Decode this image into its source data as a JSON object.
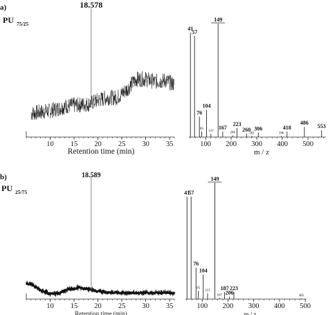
{
  "panels": [
    {
      "id": "a",
      "label": "a)",
      "sample_main": "PU",
      "sample_sub": "75/25",
      "peak_label": "18.578",
      "xlabel_chrom": "Retention time (min)",
      "xlabel_ms": "m / z"
    },
    {
      "id": "b",
      "label": "b)",
      "sample_main": "PU",
      "sample_sub": "25/75",
      "peak_label": "18.589",
      "xlabel_chrom": "Retention time (min)",
      "xlabel_ms": "m / z"
    }
  ],
  "chart_data": [
    {
      "type": "line",
      "panel": "a",
      "subtype": "chromatogram",
      "xlabel": "Retention time (min)",
      "xlim": [
        5,
        36
      ],
      "x_ticks": [
        10,
        15,
        20,
        25,
        30,
        35
      ],
      "peak": {
        "x": 18.578,
        "label": "18.578"
      },
      "baseline_profile": {
        "x": [
          6,
          10,
          14,
          18,
          20,
          22,
          24,
          26,
          28,
          30,
          32,
          34,
          36
        ],
        "y": [
          0.18,
          0.2,
          0.24,
          0.25,
          0.28,
          0.3,
          0.3,
          0.36,
          0.44,
          0.44,
          0.42,
          0.43,
          0.4
        ]
      },
      "noise_amplitude": 0.06
    },
    {
      "type": "bar",
      "panel": "a",
      "subtype": "mass_spectrum",
      "xlabel": "m / z",
      "xlim": [
        35,
        570
      ],
      "x_ticks": [
        100,
        200,
        300,
        400,
        500
      ],
      "peaks": [
        {
          "mz": 41,
          "rel": 0.92,
          "label": "41",
          "small": false
        },
        {
          "mz": 57,
          "rel": 0.89,
          "label": "57",
          "small": false
        },
        {
          "mz": 76,
          "rel": 0.18,
          "label": "76",
          "small": false
        },
        {
          "mz": 85,
          "rel": 0.05,
          "label": "85",
          "small": true
        },
        {
          "mz": 104,
          "rel": 0.24,
          "label": "104",
          "small": false
        },
        {
          "mz": 121,
          "rel": 0.03,
          "label": "121",
          "small": true
        },
        {
          "mz": 149,
          "rel": 1.0,
          "label": "149",
          "small": false
        },
        {
          "mz": 167,
          "rel": 0.05,
          "label": "167",
          "small": false
        },
        {
          "mz": 206,
          "rel": 0.015,
          "label": "206",
          "small": true
        },
        {
          "mz": 223,
          "rel": 0.08,
          "label": "223",
          "small": false
        },
        {
          "mz": 260,
          "rel": 0.03,
          "label": "260",
          "small": false
        },
        {
          "mz": 281,
          "rel": 0.01,
          "label": "281",
          "small": true
        },
        {
          "mz": 306,
          "rel": 0.04,
          "label": "306",
          "small": false
        },
        {
          "mz": 396,
          "rel": 0.01,
          "label": "396",
          "small": true
        },
        {
          "mz": 418,
          "rel": 0.05,
          "label": "418",
          "small": false
        },
        {
          "mz": 486,
          "rel": 0.09,
          "label": "486",
          "small": false
        },
        {
          "mz": 553,
          "rel": 0.06,
          "label": "553",
          "small": false
        }
      ]
    },
    {
      "type": "line",
      "panel": "b",
      "subtype": "chromatogram",
      "xlabel": "Retention time (min)",
      "xlim": [
        5,
        36
      ],
      "x_ticks": [
        10,
        15,
        20,
        25,
        30,
        35
      ],
      "peak": {
        "x": 18.589,
        "label": "18.589"
      },
      "baseline_profile": {
        "x": [
          5,
          6,
          8,
          10,
          12,
          14,
          16,
          18,
          20,
          24,
          28,
          32,
          36
        ],
        "y": [
          0.12,
          0.12,
          0.07,
          0.04,
          0.05,
          0.08,
          0.09,
          0.08,
          0.06,
          0.05,
          0.05,
          0.05,
          0.05
        ]
      },
      "noise_amplitude": 0.008
    },
    {
      "type": "bar",
      "panel": "b",
      "subtype": "mass_spectrum",
      "xlabel": "m / z",
      "xlim": [
        35,
        505
      ],
      "x_ticks": [
        100,
        200,
        300,
        400,
        500
      ],
      "peaks": [
        {
          "mz": 41,
          "rel": 0.88,
          "label": "41",
          "small": false
        },
        {
          "mz": 57,
          "rel": 0.88,
          "label": "57",
          "small": false
        },
        {
          "mz": 76,
          "rel": 0.27,
          "label": "76",
          "small": false
        },
        {
          "mz": 85,
          "rel": 0.07,
          "label": "85",
          "small": true
        },
        {
          "mz": 104,
          "rel": 0.21,
          "label": "104",
          "small": false
        },
        {
          "mz": 121,
          "rel": 0.05,
          "label": "121",
          "small": true
        },
        {
          "mz": 149,
          "rel": 1.0,
          "label": "149",
          "small": false
        },
        {
          "mz": 167,
          "rel": 0.01,
          "label": "167",
          "small": true
        },
        {
          "mz": 187,
          "rel": 0.06,
          "label": "187",
          "small": false
        },
        {
          "mz": 206,
          "rel": 0.02,
          "label": "206",
          "small": false
        },
        {
          "mz": 223,
          "rel": 0.06,
          "label": "223",
          "small": false
        },
        {
          "mz": 485,
          "rel": 0.005,
          "label": "485",
          "small": true
        }
      ]
    }
  ]
}
